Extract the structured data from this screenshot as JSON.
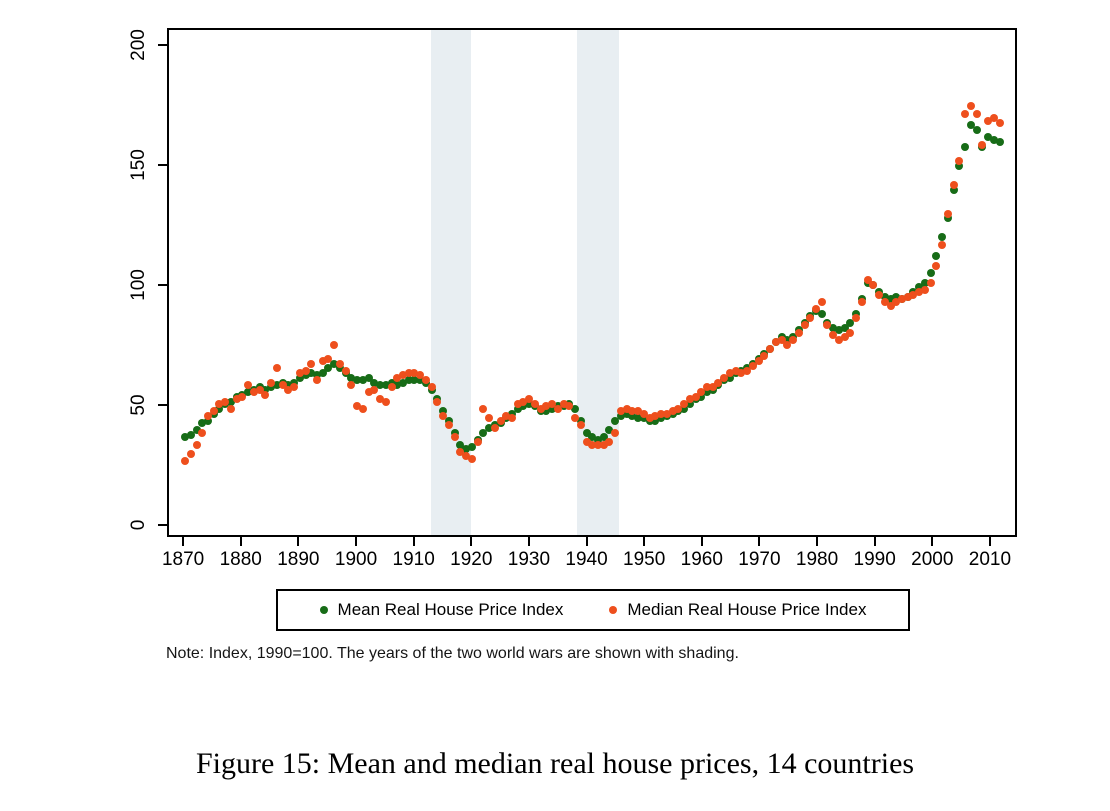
{
  "figure": {
    "note": "Note: Index, 1990=100. The years of the two world wars are shown with shading.",
    "caption": "Figure 15: Mean and median real house prices, 14 countries"
  },
  "chart_data": {
    "type": "scatter",
    "title": "",
    "xlabel": "",
    "ylabel": "",
    "x_domain": [
      1867.2,
      2014.7
    ],
    "y_domain": [
      -5,
      207.1
    ],
    "x_ticks": [
      1870,
      1880,
      1890,
      1900,
      1910,
      1920,
      1930,
      1940,
      1950,
      1960,
      1970,
      1980,
      1990,
      2000,
      2010
    ],
    "y_ticks": [
      0,
      50,
      100,
      150,
      200
    ],
    "grid": false,
    "legend_position": "bottom",
    "war_shading": [
      {
        "label": "World War I",
        "from": 1912.8,
        "to": 1919.9
      },
      {
        "label": "World War II",
        "from": 1938.4,
        "to": 1945.7
      }
    ],
    "shading_color": "#e8eef2",
    "years": [
      1870,
      1871,
      1872,
      1873,
      1874,
      1875,
      1876,
      1877,
      1878,
      1879,
      1880,
      1881,
      1882,
      1883,
      1884,
      1885,
      1886,
      1887,
      1888,
      1889,
      1890,
      1891,
      1892,
      1893,
      1894,
      1895,
      1896,
      1897,
      1898,
      1899,
      1900,
      1901,
      1902,
      1903,
      1904,
      1905,
      1906,
      1907,
      1908,
      1909,
      1910,
      1911,
      1912,
      1913,
      1914,
      1915,
      1916,
      1917,
      1918,
      1919,
      1920,
      1921,
      1922,
      1923,
      1924,
      1925,
      1926,
      1927,
      1928,
      1929,
      1930,
      1931,
      1932,
      1933,
      1934,
      1935,
      1936,
      1937,
      1938,
      1939,
      1940,
      1941,
      1942,
      1943,
      1944,
      1945,
      1946,
      1947,
      1948,
      1949,
      1950,
      1951,
      1952,
      1953,
      1954,
      1955,
      1956,
      1957,
      1958,
      1959,
      1960,
      1961,
      1962,
      1963,
      1964,
      1965,
      1966,
      1967,
      1968,
      1969,
      1970,
      1971,
      1972,
      1973,
      1974,
      1975,
      1976,
      1977,
      1978,
      1979,
      1980,
      1981,
      1982,
      1983,
      1984,
      1985,
      1986,
      1987,
      1988,
      1989,
      1990,
      1991,
      1992,
      1993,
      1994,
      1995,
      1996,
      1997,
      1998,
      1999,
      2000,
      2001,
      2002,
      2003,
      2004,
      2005,
      2006,
      2007,
      2008,
      2009,
      2010,
      2011,
      2012
    ],
    "series": [
      {
        "name": "Mean Real House Price Index",
        "color": "#176c17",
        "values": [
          36,
          37,
          39,
          42,
          43,
          46,
          48,
          50,
          51,
          53,
          54,
          55,
          56,
          57,
          56,
          57,
          58,
          59,
          58,
          59,
          61,
          62,
          63,
          62,
          63,
          65,
          67,
          65,
          63,
          61,
          60,
          60,
          61,
          59,
          58,
          58,
          59,
          58,
          59,
          60,
          60,
          60,
          59,
          56,
          52,
          47,
          43,
          38,
          33,
          31,
          32,
          35,
          38,
          40,
          41,
          42,
          44,
          46,
          48,
          49,
          50,
          49,
          47,
          47,
          48,
          49,
          49,
          50,
          48,
          43,
          38,
          36,
          35,
          36,
          39,
          43,
          45,
          46,
          45,
          44,
          44,
          43,
          43,
          44,
          45,
          46,
          47,
          48,
          50,
          52,
          53,
          55,
          56,
          58,
          60,
          61,
          63,
          64,
          65,
          67,
          69,
          71,
          73,
          76,
          78,
          77,
          78,
          81,
          84,
          87,
          89,
          88,
          84,
          82,
          81,
          82,
          84,
          88,
          94,
          101,
          100,
          97,
          95,
          94,
          95,
          94,
          95,
          97,
          99,
          101,
          105,
          112,
          120,
          128,
          140,
          150,
          158,
          167,
          165,
          158,
          162,
          161,
          160
        ]
      },
      {
        "name": "Median Real House Price Index",
        "color": "#ee4f1d",
        "values": [
          26,
          29,
          33,
          38,
          45,
          47,
          50,
          51,
          48,
          52,
          53,
          58,
          55,
          56,
          54,
          59,
          65,
          58,
          56,
          57,
          63,
          64,
          67,
          60,
          68,
          69,
          75,
          67,
          64,
          58,
          49,
          48,
          55,
          56,
          52,
          51,
          57,
          61,
          62,
          63,
          63,
          62,
          60,
          57,
          51,
          45,
          41,
          36,
          30,
          28,
          27,
          34,
          48,
          44,
          40,
          43,
          45,
          44,
          50,
          51,
          52,
          50,
          48,
          49,
          50,
          48,
          50,
          49,
          44,
          41,
          34,
          33,
          33,
          33,
          34,
          38,
          47,
          48,
          47,
          47,
          46,
          44,
          45,
          46,
          46,
          47,
          48,
          50,
          52,
          53,
          55,
          57,
          57,
          59,
          61,
          63,
          64,
          63,
          64,
          66,
          68,
          70,
          73,
          76,
          77,
          75,
          77,
          80,
          83,
          86,
          90,
          93,
          83,
          79,
          77,
          78,
          80,
          86,
          93,
          102,
          100,
          96,
          93,
          91,
          93,
          94,
          95,
          96,
          97,
          98,
          101,
          108,
          117,
          130,
          142,
          152,
          172,
          175,
          172,
          159,
          169,
          170,
          168
        ]
      }
    ]
  }
}
